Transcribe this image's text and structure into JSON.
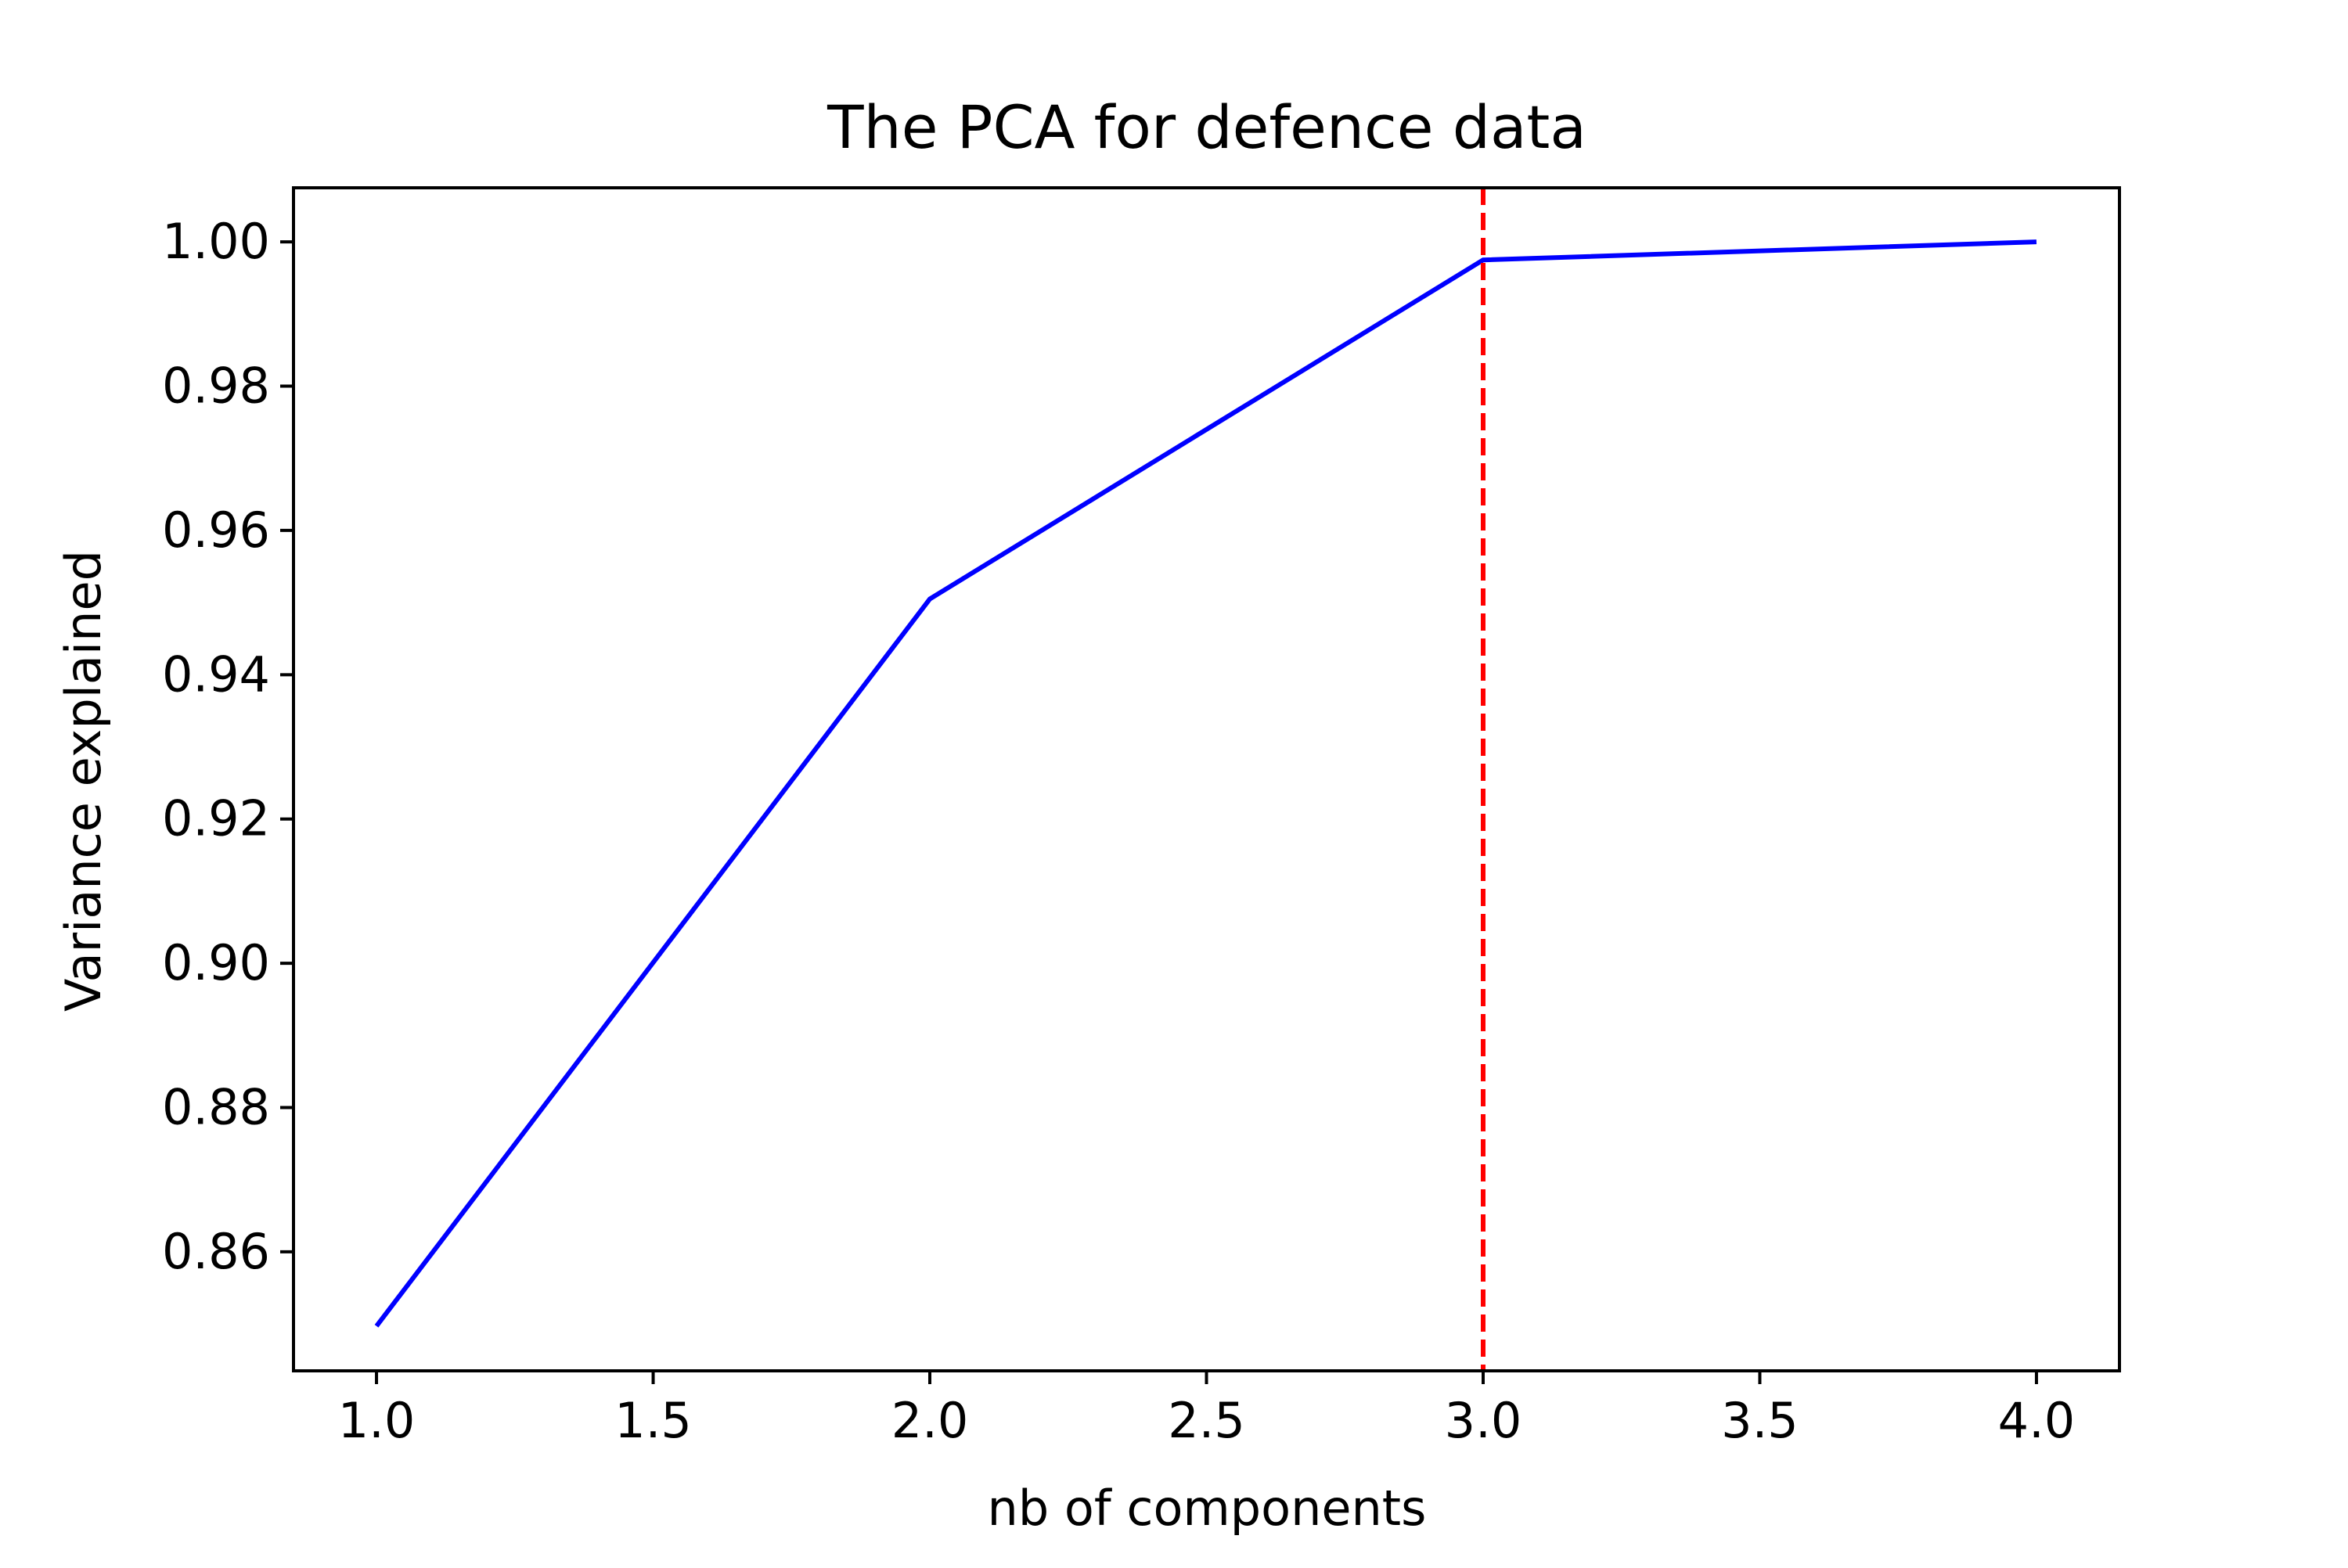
{
  "chart_data": {
    "type": "line",
    "title": "The PCA for defence data",
    "xlabel": "nb of components",
    "ylabel": "Variance explained",
    "xlim": [
      0.85,
      4.15
    ],
    "ylim": [
      0.8435,
      1.0075
    ],
    "x_ticks": [
      1.0,
      1.5,
      2.0,
      2.5,
      3.0,
      3.5,
      4.0
    ],
    "x_tick_labels": [
      "1.0",
      "1.5",
      "2.0",
      "2.5",
      "3.0",
      "3.5",
      "4.0"
    ],
    "y_ticks": [
      0.86,
      0.88,
      0.9,
      0.92,
      0.94,
      0.96,
      0.98,
      1.0
    ],
    "y_tick_labels": [
      "0.86",
      "0.88",
      "0.90",
      "0.92",
      "0.94",
      "0.96",
      "0.98",
      "1.00"
    ],
    "grid": false,
    "series": [
      {
        "x": [
          1,
          2,
          3,
          4
        ],
        "y": [
          0.8497,
          0.9505,
          0.9975,
          1.0
        ],
        "color": "#0000ff",
        "style": "solid"
      }
    ],
    "vlines": [
      {
        "x": 3.0,
        "color": "#ff0000",
        "style": "dashed"
      }
    ]
  }
}
